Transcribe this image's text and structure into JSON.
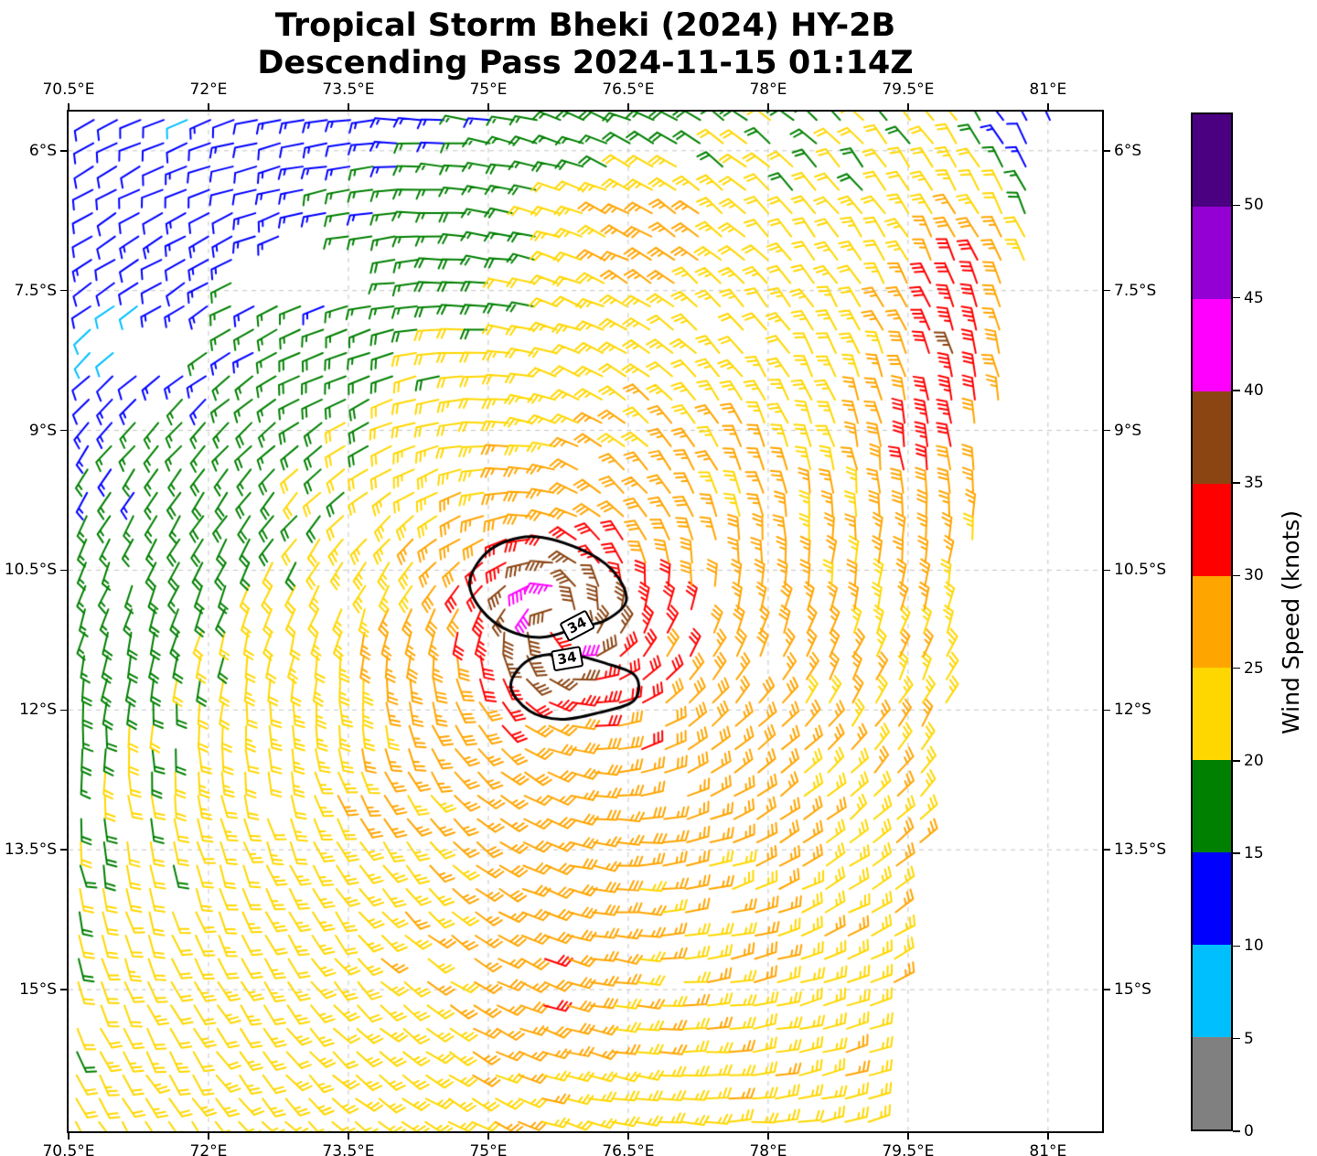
{
  "title": "Tropical Storm Bheki (2024) HY-2B",
  "subtitle": "Descending Pass 2024-11-15 01:14Z",
  "chart_data": {
    "type": "wind_barb_map",
    "satellite": "HY-2B",
    "storm_name": "Bheki",
    "pass_type": "Descending",
    "pass_time": "2024-11-15 01:14Z",
    "x_axis": {
      "tick_values": [
        70.5,
        72,
        73.5,
        75,
        76.5,
        78,
        79.5,
        81
      ],
      "tick_labels": [
        "70.5°E",
        "72°E",
        "73.5°E",
        "75°E",
        "76.5°E",
        "78°E",
        "79.5°E",
        "81°E"
      ],
      "range": [
        70.5,
        81.58
      ]
    },
    "y_axis": {
      "tick_values": [
        -6,
        -7.5,
        -9,
        -10.5,
        -12,
        -13.5,
        -15
      ],
      "tick_labels": [
        "6°S",
        "7.5°S",
        "9°S",
        "10.5°S",
        "12°S",
        "13.5°S",
        "15°S"
      ],
      "range": [
        -16.52,
        -5.58
      ]
    },
    "grid": {
      "show": true,
      "style": "dashed",
      "color": "#c4c4c4"
    },
    "colorbar": {
      "label": "Wind Speed (knots)",
      "tick_values": [
        0,
        5,
        10,
        15,
        20,
        25,
        30,
        35,
        40,
        45,
        50
      ],
      "range": [
        0,
        55
      ],
      "bin_size_kt": 5,
      "colors": [
        "#808080",
        "#00bfff",
        "#0000ff",
        "#008000",
        "#ffd700",
        "#ffa500",
        "#ff0000",
        "#8b4513",
        "#ff00ff",
        "#9400d3",
        "#4b0082"
      ]
    },
    "storm": {
      "center_lon": 75.75,
      "center_lat": -11.05,
      "rotation": "clockwise",
      "hemisphere": "southern",
      "wind_radii_contour_kt": "34"
    },
    "contours": [
      {
        "label": "34",
        "label_lon": 75.95,
        "label_lat": -11.09,
        "label_rot_deg": -28,
        "points": [
          [
            74.8,
            -10.62
          ],
          [
            75.02,
            -10.28
          ],
          [
            75.45,
            -10.14
          ],
          [
            75.95,
            -10.26
          ],
          [
            76.33,
            -10.5
          ],
          [
            76.48,
            -10.82
          ],
          [
            76.27,
            -11.03
          ],
          [
            75.95,
            -11.12
          ],
          [
            75.58,
            -11.22
          ],
          [
            75.22,
            -11.15
          ],
          [
            74.93,
            -10.93
          ]
        ]
      },
      {
        "label": "34",
        "label_lon": 75.84,
        "label_lat": -11.45,
        "label_rot_deg": -10,
        "points": [
          [
            75.24,
            -11.74
          ],
          [
            75.44,
            -11.46
          ],
          [
            75.84,
            -11.4
          ],
          [
            76.26,
            -11.5
          ],
          [
            76.58,
            -11.64
          ],
          [
            76.56,
            -11.9
          ],
          [
            76.18,
            -12.03
          ],
          [
            75.78,
            -12.1
          ],
          [
            75.44,
            -12.01
          ]
        ]
      }
    ],
    "field_model": {
      "base": {
        "level": 20,
        "drop": 14,
        "ref_lon": 74.5,
        "ref_lat": -7.5,
        "scale_deg": 5
      },
      "vortex": {
        "peak_add": 20,
        "rmax_deg": 0.55,
        "core_ramp_deg": 0.18,
        "decay_exp": 0.7,
        "inflow": 0.3
      },
      "blobs": [
        {
          "lon": 76.7,
          "lat": -6.9,
          "sx": 0.9,
          "sy": 0.7,
          "amp": 8
        },
        {
          "lon": 75.55,
          "lat": -10.75,
          "sx": 0.3,
          "sy": 0.25,
          "amp": 6
        },
        {
          "lon": 75.6,
          "lat": -14.7,
          "sx": 0.7,
          "sy": 1.1,
          "amp": 5
        },
        {
          "lon": 80.9,
          "lat": -5.9,
          "sx": 0.6,
          "sy": 0.8,
          "amp": -13
        },
        {
          "lon": 71.0,
          "lat": -8.0,
          "sx": 0.5,
          "sy": 0.45,
          "amp": -6
        }
      ],
      "edge_band": {
        "amp": 12,
        "sigma": 0.55,
        "offset": 0.65,
        "lat_center": -8.2,
        "lat_sigma": 1.7
      },
      "swath_edge": {
        "lon_ref": 81.05,
        "lat_ref": -5.58,
        "slope": 0.18
      },
      "gaps": [
        {
          "lon": 73.1,
          "lat": -7.25,
          "rx": 0.85,
          "ry": 0.35,
          "drop": 1.0
        },
        {
          "lon": 71.35,
          "lat": -8.05,
          "rx": 0.5,
          "ry": 0.4,
          "drop": 0.5
        }
      ],
      "eye_radius_deg": 0.1,
      "grid_spacing_deg": 0.25,
      "row_slant_deg_per_deg_lat": 0.018,
      "jitter": {
        "dir_rad": 0.22,
        "speed_kt": 3,
        "dropout": 0.015
      },
      "seed": 42
    }
  }
}
